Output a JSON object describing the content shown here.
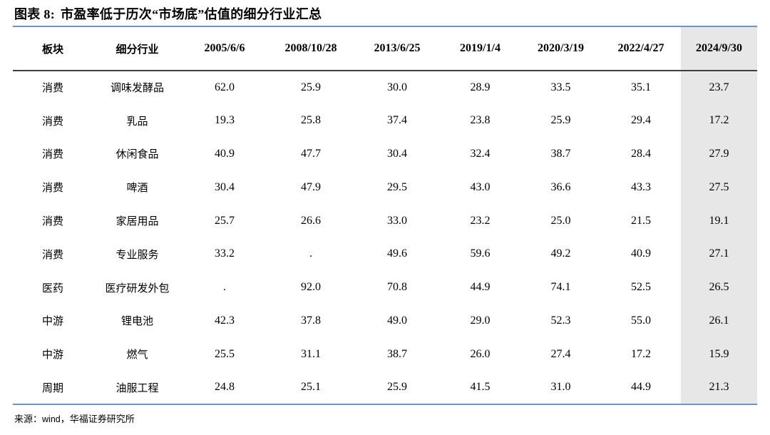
{
  "title": {
    "prefix": "图表 8:",
    "text": "市盈率低于历次“市场底”估值的细分行业汇总"
  },
  "table": {
    "columns": [
      "板块",
      "细分行业",
      "2005/6/6",
      "2008/10/28",
      "2013/6/25",
      "2019/1/4",
      "2020/3/19",
      "2022/4/27",
      "2024/9/30"
    ],
    "highlight_column": "2024/9/30",
    "highlight_column_index": 8,
    "rows": [
      [
        "消费",
        "调味发酵品",
        "62.0",
        "25.9",
        "30.0",
        "28.9",
        "33.5",
        "35.1",
        "23.7"
      ],
      [
        "消费",
        "乳品",
        "19.3",
        "25.8",
        "37.4",
        "23.8",
        "25.9",
        "29.4",
        "17.2"
      ],
      [
        "消费",
        "休闲食品",
        "40.9",
        "47.7",
        "30.4",
        "32.4",
        "38.7",
        "28.4",
        "27.9"
      ],
      [
        "消费",
        "啤酒",
        "30.4",
        "47.9",
        "29.5",
        "43.0",
        "36.6",
        "43.3",
        "27.5"
      ],
      [
        "消费",
        "家居用品",
        "25.7",
        "26.6",
        "33.0",
        "23.2",
        "25.0",
        "21.5",
        "19.1"
      ],
      [
        "消费",
        "专业服务",
        "33.2",
        ".",
        "49.6",
        "59.6",
        "49.2",
        "40.9",
        "27.1"
      ],
      [
        "医药",
        "医疗研发外包",
        ".",
        "92.0",
        "70.8",
        "44.9",
        "74.1",
        "52.5",
        "26.5"
      ],
      [
        "中游",
        "锂电池",
        "42.3",
        "37.8",
        "49.0",
        "29.0",
        "52.3",
        "55.0",
        "26.1"
      ],
      [
        "中游",
        "燃气",
        "25.5",
        "31.1",
        "38.7",
        "26.0",
        "27.4",
        "17.2",
        "15.9"
      ],
      [
        "周期",
        "油服工程",
        "24.8",
        "25.1",
        "25.9",
        "41.5",
        "31.0",
        "44.9",
        "21.3"
      ]
    ]
  },
  "footer": {
    "source_label": "来源：",
    "source_wind": "wind",
    "source_rest": "，华福证券研究所"
  },
  "colors": {
    "accent_rule": "#6a93c6",
    "header_rule": "#3f3f3f",
    "highlight_bg": "#e7e7e7",
    "text": "#000000",
    "background": "#ffffff"
  }
}
